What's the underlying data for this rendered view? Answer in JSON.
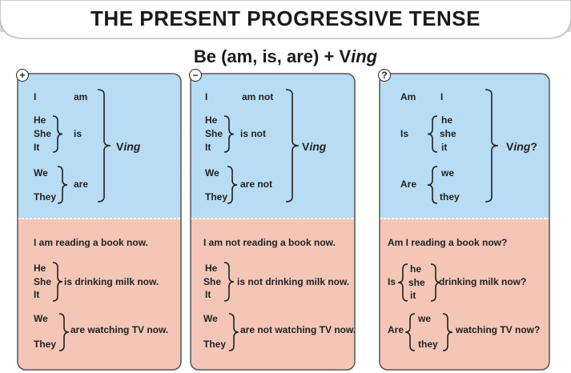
{
  "header": {
    "title": "THE PRESENT PROGRESSIVE TENSE"
  },
  "formula": {
    "text": "Be (am, is, are) + V",
    "suffix": "ing"
  },
  "panels": [
    {
      "symbol": "+",
      "top": [
        "I",
        "am",
        "He",
        "She",
        "It",
        "is",
        "We",
        "They",
        "are"
      ],
      "result": {
        "base": "V",
        "suffix": "ing"
      },
      "bottom": [
        "I am reading a book now.",
        "He",
        "She",
        "It",
        "is drinking milk now.",
        "We",
        "They",
        "are watching TV now."
      ]
    },
    {
      "symbol": "−",
      "top": [
        "I",
        "am not",
        "He",
        "She",
        "It",
        "is not",
        "We",
        "They",
        "are not"
      ],
      "result": {
        "base": "V",
        "suffix": "ing"
      },
      "bottom": [
        "I am not reading a book now.",
        "He",
        "She",
        "It",
        "is not  drinking milk now.",
        "We",
        "They",
        "are not  watching TV now."
      ]
    },
    {
      "symbol": "?",
      "top": [
        "Am",
        "I",
        "Is",
        "he",
        "she",
        "it",
        "Are",
        "we",
        "they"
      ],
      "result": {
        "base": "V",
        "suffix": "ing",
        "end": "?"
      },
      "bottom": [
        "Am I reading a book now?",
        "Is",
        "he",
        "she",
        "it",
        "drinking milk now?",
        "Are",
        "we",
        "they",
        "watching TV now?"
      ]
    }
  ]
}
